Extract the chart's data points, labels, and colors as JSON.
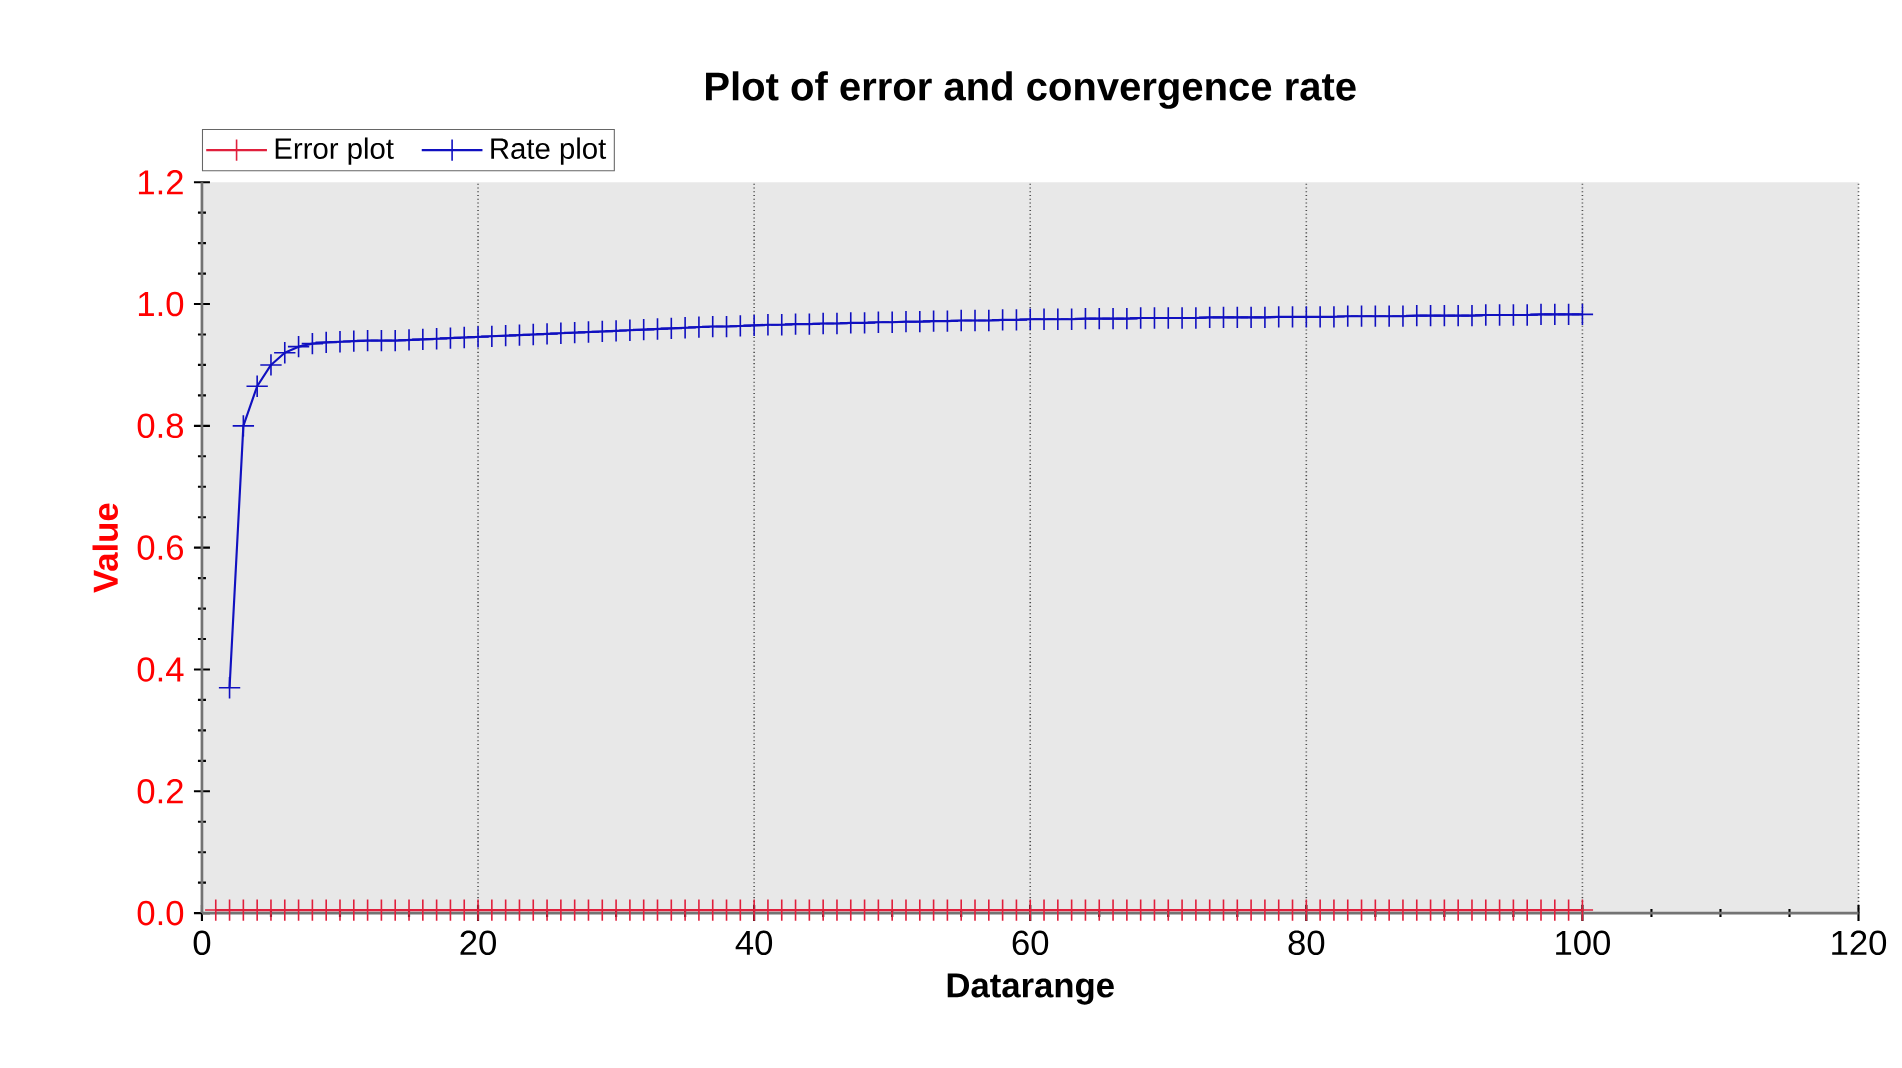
{
  "chart_data": {
    "type": "line",
    "title": "Plot of error and convergence rate",
    "xlabel": "Datarange",
    "ylabel": "Value",
    "x": [
      1,
      2,
      3,
      4,
      5,
      6,
      7,
      8,
      9,
      10,
      11,
      12,
      13,
      14,
      15,
      16,
      17,
      18,
      19,
      20,
      21,
      22,
      23,
      24,
      25,
      26,
      27,
      28,
      29,
      30,
      31,
      32,
      33,
      34,
      35,
      36,
      37,
      38,
      39,
      40,
      41,
      42,
      43,
      44,
      45,
      46,
      47,
      48,
      49,
      50,
      51,
      52,
      53,
      54,
      55,
      56,
      57,
      58,
      59,
      60,
      61,
      62,
      63,
      64,
      65,
      66,
      67,
      68,
      69,
      70,
      71,
      72,
      73,
      74,
      75,
      76,
      77,
      78,
      79,
      80,
      81,
      82,
      83,
      84,
      85,
      86,
      87,
      88,
      89,
      90,
      91,
      92,
      93,
      94,
      95,
      96,
      97,
      98,
      99,
      100
    ],
    "series": [
      {
        "name": "Error plot",
        "color": "#e0203c",
        "values": [
          0.005,
          0.005,
          0.005,
          0.005,
          0.005,
          0.005,
          0.005,
          0.005,
          0.005,
          0.005,
          0.005,
          0.005,
          0.005,
          0.005,
          0.005,
          0.005,
          0.005,
          0.005,
          0.005,
          0.005,
          0.005,
          0.005,
          0.005,
          0.005,
          0.005,
          0.005,
          0.005,
          0.005,
          0.005,
          0.005,
          0.005,
          0.005,
          0.005,
          0.005,
          0.005,
          0.005,
          0.005,
          0.005,
          0.005,
          0.005,
          0.005,
          0.005,
          0.005,
          0.005,
          0.005,
          0.005,
          0.005,
          0.005,
          0.005,
          0.005,
          0.005,
          0.005,
          0.005,
          0.005,
          0.005,
          0.005,
          0.005,
          0.005,
          0.005,
          0.005,
          0.005,
          0.005,
          0.005,
          0.005,
          0.005,
          0.005,
          0.005,
          0.005,
          0.005,
          0.005,
          0.005,
          0.005,
          0.005,
          0.005,
          0.005,
          0.005,
          0.005,
          0.005,
          0.005,
          0.005,
          0.005,
          0.005,
          0.005,
          0.005,
          0.005,
          0.005,
          0.005,
          0.005,
          0.005,
          0.005,
          0.005,
          0.005,
          0.005,
          0.005,
          0.005,
          0.005,
          0.005,
          0.005,
          0.005,
          0.005
        ]
      },
      {
        "name": "Rate plot",
        "color": "#1010c0",
        "x": [
          2,
          3,
          4,
          5,
          6,
          7,
          8,
          9,
          10,
          11,
          12,
          13,
          14,
          15,
          16,
          17,
          18,
          19,
          20,
          21,
          22,
          23,
          24,
          25,
          26,
          27,
          28,
          29,
          30,
          31,
          32,
          33,
          34,
          35,
          36,
          37,
          38,
          39,
          40,
          41,
          42,
          43,
          44,
          45,
          46,
          47,
          48,
          49,
          50,
          51,
          52,
          53,
          54,
          55,
          56,
          57,
          58,
          59,
          60,
          61,
          62,
          63,
          64,
          65,
          66,
          67,
          68,
          69,
          70,
          71,
          72,
          73,
          74,
          75,
          76,
          77,
          78,
          79,
          80,
          81,
          82,
          83,
          84,
          85,
          86,
          87,
          88,
          89,
          90,
          91,
          92,
          93,
          94,
          95,
          96,
          97,
          98,
          99,
          100
        ],
        "values": [
          0.37,
          0.8,
          0.865,
          0.9,
          0.92,
          0.93,
          0.935,
          0.937,
          0.938,
          0.939,
          0.94,
          0.94,
          0.94,
          0.941,
          0.942,
          0.943,
          0.944,
          0.945,
          0.946,
          0.947,
          0.948,
          0.949,
          0.95,
          0.951,
          0.952,
          0.953,
          0.954,
          0.955,
          0.956,
          0.957,
          0.958,
          0.959,
          0.96,
          0.961,
          0.962,
          0.963,
          0.963,
          0.964,
          0.965,
          0.966,
          0.966,
          0.967,
          0.967,
          0.968,
          0.968,
          0.969,
          0.969,
          0.97,
          0.97,
          0.971,
          0.971,
          0.972,
          0.972,
          0.973,
          0.973,
          0.973,
          0.974,
          0.974,
          0.975,
          0.975,
          0.975,
          0.975,
          0.976,
          0.976,
          0.976,
          0.976,
          0.977,
          0.977,
          0.977,
          0.977,
          0.977,
          0.978,
          0.978,
          0.978,
          0.978,
          0.978,
          0.979,
          0.979,
          0.979,
          0.979,
          0.979,
          0.98,
          0.98,
          0.98,
          0.98,
          0.98,
          0.981,
          0.981,
          0.981,
          0.981,
          0.981,
          0.982,
          0.982,
          0.982,
          0.982,
          0.983,
          0.983,
          0.983,
          0.983
        ]
      }
    ],
    "xlim": [
      0,
      120
    ],
    "ylim": [
      0,
      1.2
    ],
    "xticks": [
      0,
      20,
      40,
      60,
      80,
      100,
      120
    ],
    "yticks": [
      {
        "value": 0,
        "label": "0.0"
      },
      {
        "value": 0.2,
        "label": "0.2"
      },
      {
        "value": 0.4,
        "label": "0.4"
      },
      {
        "value": 0.6,
        "label": "0.6"
      },
      {
        "value": 0.8,
        "label": "0.8"
      },
      {
        "value": 1.0,
        "label": "1.0"
      },
      {
        "value": 1.2,
        "label": "1.2"
      }
    ],
    "grid": "x",
    "legend": "top left",
    "marker": "cross",
    "line_style": "solid"
  }
}
